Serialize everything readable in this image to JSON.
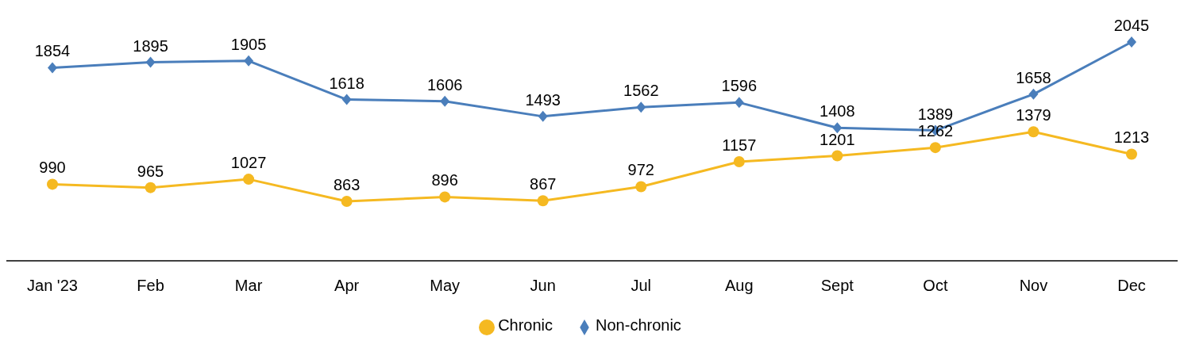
{
  "chart_data": {
    "type": "line",
    "categories": [
      "Jan '23",
      "Feb",
      "Mar",
      "Apr",
      "May",
      "Jun",
      "Jul",
      "Aug",
      "Sept",
      "Oct",
      "Nov",
      "Dec"
    ],
    "series": [
      {
        "name": "Chronic",
        "color": "#f5b921",
        "marker": "circle",
        "values": [
          990,
          965,
          1027,
          863,
          896,
          867,
          972,
          1157,
          1201,
          1262,
          1379,
          1213
        ]
      },
      {
        "name": "Non-chronic",
        "color": "#4a7ebb",
        "marker": "diamond",
        "values": [
          1854,
          1895,
          1905,
          1618,
          1606,
          1493,
          1562,
          1596,
          1408,
          1389,
          1658,
          2045
        ]
      }
    ],
    "data_labels": true,
    "legend": "bottom",
    "line_style": "solid"
  }
}
